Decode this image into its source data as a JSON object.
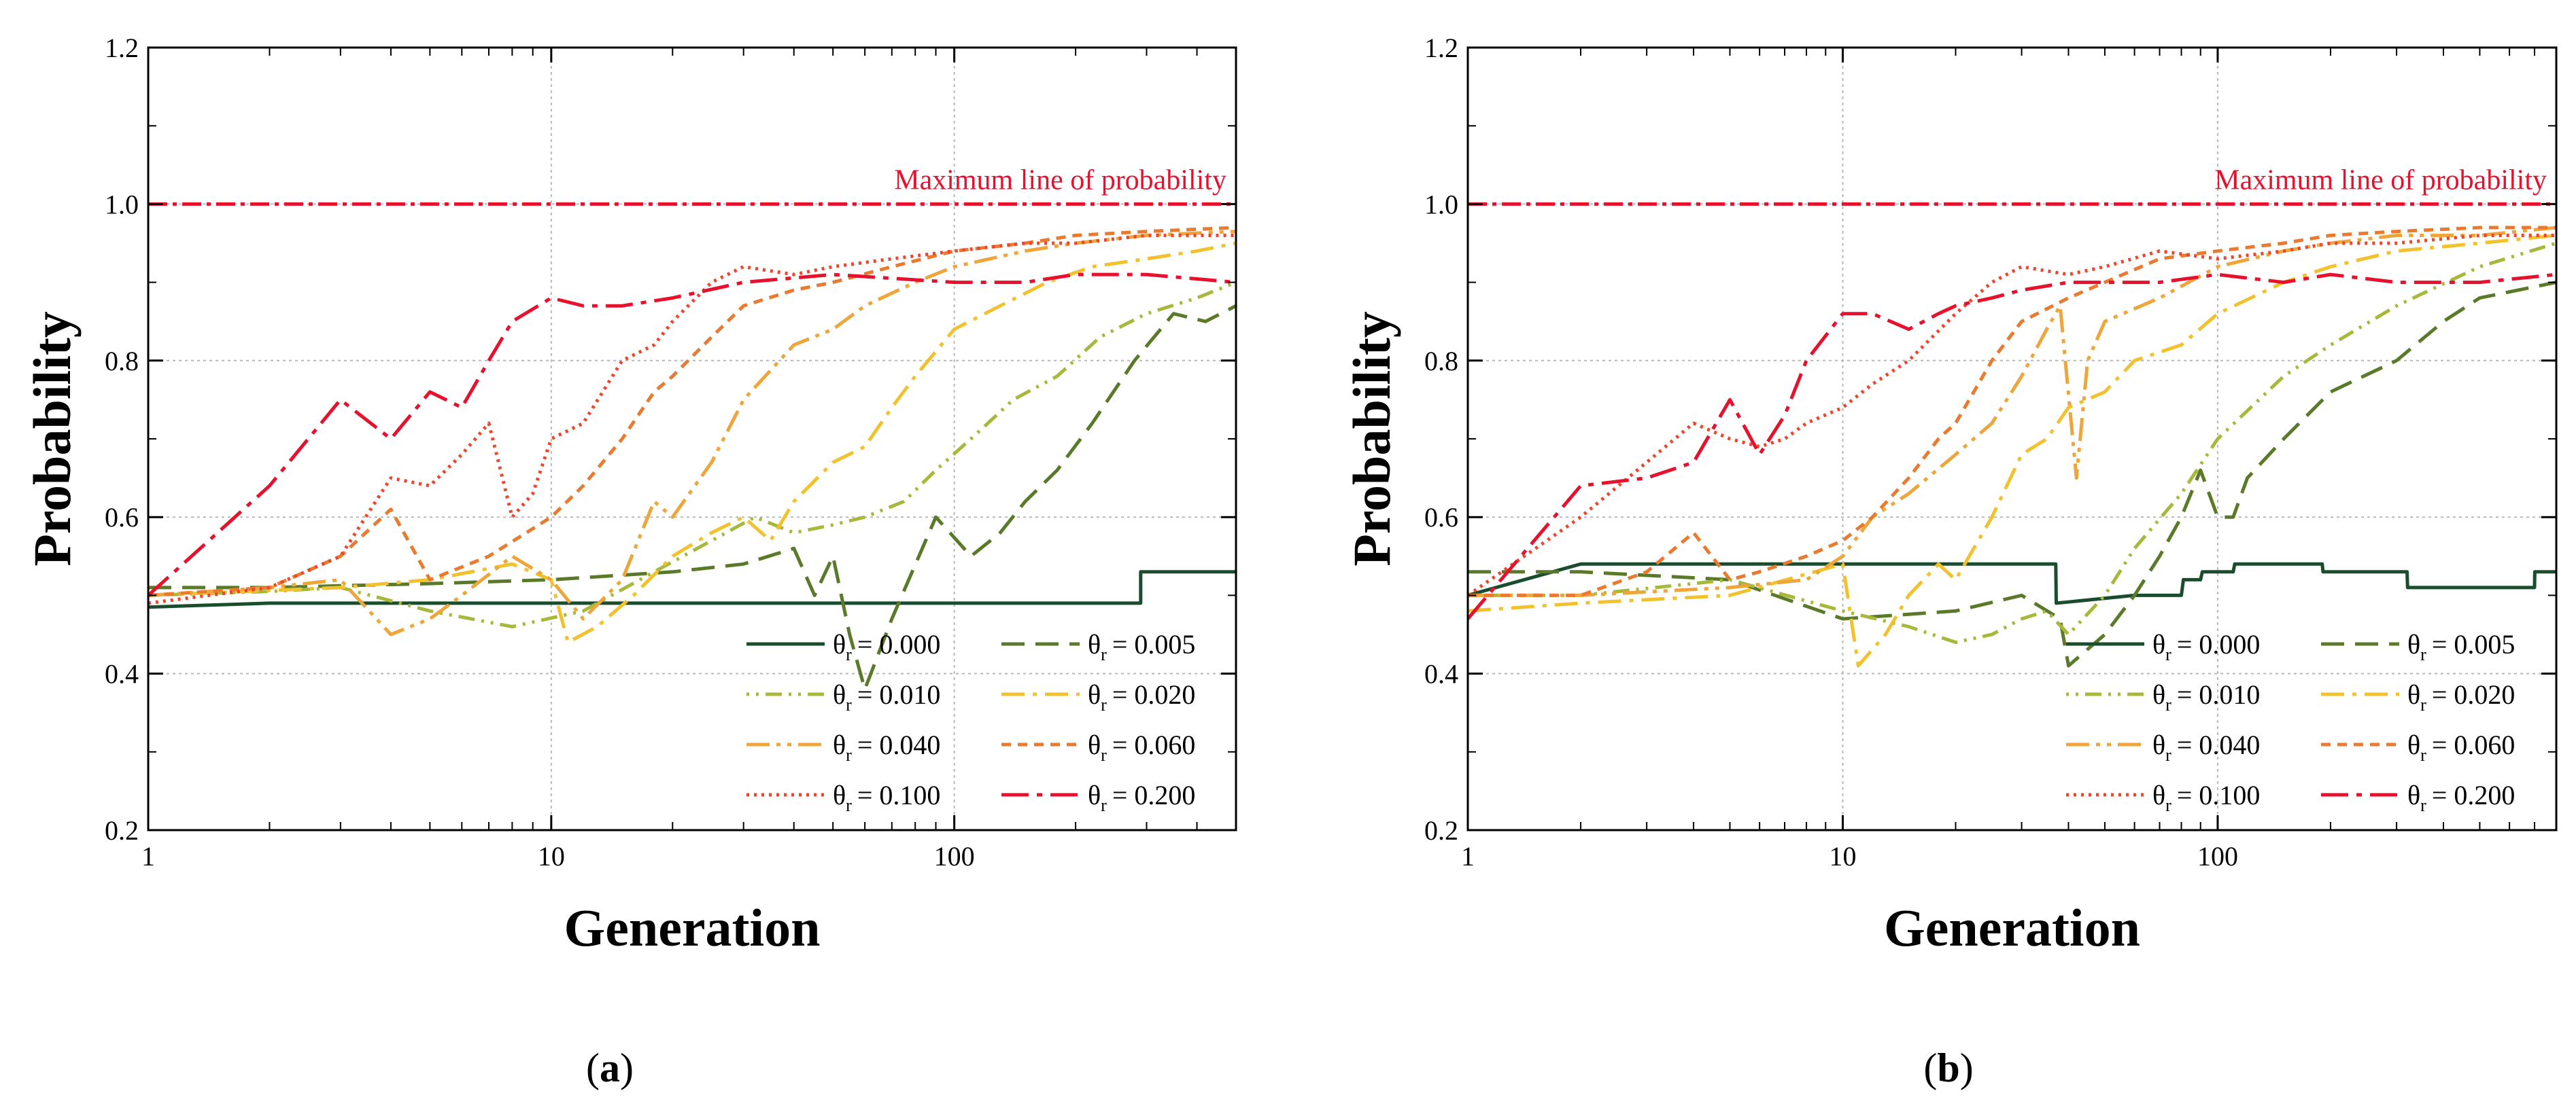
{
  "colors": {
    "theta_000": "#1a4d2e",
    "theta_005": "#5a7a2a",
    "theta_010": "#a8b83a",
    "theta_020": "#f2c12e",
    "theta_040": "#eea53a",
    "theta_060": "#ea7a30",
    "theta_100": "#f0452d",
    "theta_200": "#e8112d",
    "max_line": "#e8112d"
  },
  "chart_data": [
    {
      "panel": "a",
      "caption_letter": "a",
      "caption": "(a)",
      "type": "line",
      "xscale": "log",
      "xlim": [
        1,
        500
      ],
      "ylim": [
        0.2,
        1.2
      ],
      "xlabel": "Generation",
      "ylabel": "Probability",
      "xticks": [
        {
          "v": 1,
          "label": "1"
        },
        {
          "v": 10,
          "label": "10"
        },
        {
          "v": 100,
          "label": "100"
        }
      ],
      "yticks": [
        {
          "v": 0.2,
          "label": "0.2"
        },
        {
          "v": 0.4,
          "label": "0.4"
        },
        {
          "v": 0.6,
          "label": "0.6"
        },
        {
          "v": 0.8,
          "label": "0.8"
        },
        {
          "v": 1.0,
          "label": "1.0"
        },
        {
          "v": 1.2,
          "label": "1.2"
        }
      ],
      "grid": true,
      "max_line": {
        "y": 1.0,
        "label": "Maximum line of probability"
      },
      "legend_position": "bottom-right",
      "series": [
        {
          "key": "theta_000",
          "name_symbol": "θ",
          "name_sub": "r",
          "name_value": "= 0.000",
          "dash": "none",
          "x": [
            1,
            2,
            5,
            10,
            50,
            100,
            290,
            290.1,
            500
          ],
          "y": [
            0.485,
            0.49,
            0.49,
            0.49,
            0.49,
            0.49,
            0.49,
            0.53,
            0.53
          ]
        },
        {
          "key": "theta_005",
          "name_symbol": "θ",
          "name_sub": "r",
          "name_value": "= 0.005",
          "dash": "dashed",
          "x": [
            1,
            2,
            5,
            10,
            20,
            30,
            40,
            45,
            50,
            55,
            60,
            70,
            90,
            110,
            130,
            150,
            180,
            220,
            280,
            350,
            420,
            500
          ],
          "y": [
            0.51,
            0.51,
            0.515,
            0.52,
            0.53,
            0.54,
            0.56,
            0.5,
            0.55,
            0.45,
            0.38,
            0.47,
            0.6,
            0.55,
            0.58,
            0.62,
            0.66,
            0.72,
            0.8,
            0.86,
            0.85,
            0.87
          ]
        },
        {
          "key": "theta_010",
          "name_symbol": "θ",
          "name_sub": "r",
          "name_value": "= 0.010",
          "dash": "dotdotdash",
          "x": [
            1,
            2,
            3,
            5,
            8,
            12,
            18,
            25,
            32,
            40,
            50,
            60,
            75,
            90,
            110,
            140,
            180,
            230,
            300,
            400,
            500
          ],
          "y": [
            0.5,
            0.505,
            0.51,
            0.48,
            0.46,
            0.48,
            0.53,
            0.57,
            0.6,
            0.58,
            0.59,
            0.6,
            0.62,
            0.66,
            0.7,
            0.75,
            0.78,
            0.83,
            0.86,
            0.88,
            0.9
          ]
        },
        {
          "key": "theta_020",
          "name_symbol": "θ",
          "name_sub": "r",
          "name_value": "= 0.020",
          "dash": "dashdot",
          "x": [
            1,
            3,
            5,
            8,
            10,
            11,
            13,
            16,
            20,
            25,
            30,
            35,
            40,
            50,
            60,
            70,
            80,
            100,
            130,
            170,
            220,
            300,
            400,
            500
          ],
          "y": [
            0.5,
            0.51,
            0.52,
            0.54,
            0.52,
            0.44,
            0.46,
            0.5,
            0.55,
            0.58,
            0.6,
            0.57,
            0.62,
            0.67,
            0.69,
            0.74,
            0.78,
            0.84,
            0.87,
            0.9,
            0.92,
            0.93,
            0.94,
            0.95
          ]
        },
        {
          "key": "theta_040",
          "name_symbol": "θ",
          "name_sub": "r",
          "name_value": "= 0.040",
          "dash": "dashdotdot",
          "x": [
            1,
            2,
            3,
            4,
            5,
            6,
            8,
            10,
            12,
            15,
            18,
            20,
            25,
            30,
            40,
            50,
            60,
            80,
            100,
            150,
            200,
            300,
            500
          ],
          "y": [
            0.5,
            0.51,
            0.52,
            0.45,
            0.47,
            0.5,
            0.55,
            0.52,
            0.47,
            0.52,
            0.62,
            0.6,
            0.67,
            0.75,
            0.82,
            0.84,
            0.87,
            0.9,
            0.92,
            0.94,
            0.95,
            0.96,
            0.965
          ]
        },
        {
          "key": "theta_060",
          "name_symbol": "θ",
          "name_sub": "r",
          "name_value": "= 0.060",
          "dash": "shortdash",
          "x": [
            1,
            2,
            3,
            4,
            5,
            7,
            10,
            12,
            15,
            18,
            20,
            25,
            30,
            40,
            50,
            70,
            100,
            150,
            200,
            300,
            500
          ],
          "y": [
            0.5,
            0.51,
            0.55,
            0.61,
            0.52,
            0.55,
            0.6,
            0.64,
            0.7,
            0.76,
            0.78,
            0.83,
            0.87,
            0.89,
            0.9,
            0.92,
            0.94,
            0.95,
            0.96,
            0.965,
            0.97
          ]
        },
        {
          "key": "theta_100",
          "name_symbol": "θ",
          "name_sub": "r",
          "name_value": "= 0.100",
          "dash": "dotted",
          "x": [
            1,
            2,
            3,
            4,
            5,
            6,
            7,
            8,
            9,
            10,
            12,
            15,
            18,
            20,
            25,
            30,
            40,
            50,
            70,
            100,
            150,
            200,
            300,
            500
          ],
          "y": [
            0.49,
            0.51,
            0.55,
            0.65,
            0.64,
            0.68,
            0.72,
            0.6,
            0.63,
            0.7,
            0.72,
            0.8,
            0.82,
            0.85,
            0.9,
            0.92,
            0.91,
            0.92,
            0.93,
            0.94,
            0.95,
            0.95,
            0.96,
            0.96
          ]
        },
        {
          "key": "theta_200",
          "name_symbol": "θ",
          "name_sub": "r",
          "name_value": "= 0.200",
          "dash": "longdashdot",
          "x": [
            1,
            2,
            3,
            4,
            5,
            6,
            7,
            8,
            10,
            12,
            15,
            20,
            30,
            50,
            100,
            150,
            200,
            300,
            500
          ],
          "y": [
            0.5,
            0.64,
            0.75,
            0.7,
            0.76,
            0.74,
            0.8,
            0.85,
            0.88,
            0.87,
            0.87,
            0.88,
            0.9,
            0.91,
            0.9,
            0.9,
            0.91,
            0.91,
            0.9
          ]
        }
      ]
    },
    {
      "panel": "b",
      "caption_letter": "b",
      "caption": "(b)",
      "type": "line",
      "xscale": "log",
      "xlim": [
        1,
        800
      ],
      "ylim": [
        0.2,
        1.2
      ],
      "xlabel": "Generation",
      "ylabel": "Probability",
      "xticks": [
        {
          "v": 1,
          "label": "1"
        },
        {
          "v": 10,
          "label": "10"
        },
        {
          "v": 100,
          "label": "100"
        }
      ],
      "yticks": [
        {
          "v": 0.2,
          "label": "0.2"
        },
        {
          "v": 0.4,
          "label": "0.4"
        },
        {
          "v": 0.6,
          "label": "0.6"
        },
        {
          "v": 0.8,
          "label": "0.8"
        },
        {
          "v": 1.0,
          "label": "1.0"
        },
        {
          "v": 1.2,
          "label": "1.2"
        }
      ],
      "grid": true,
      "max_line": {
        "y": 1.0,
        "label": "Maximum line of probability"
      },
      "legend_position": "bottom-right",
      "series": [
        {
          "key": "theta_000",
          "name_symbol": "θ",
          "name_sub": "r",
          "name_value": "= 0.000",
          "dash": "none",
          "x": [
            1,
            2,
            5,
            10,
            20,
            37,
            37.1,
            60,
            80,
            81,
            90,
            91,
            110,
            111,
            190,
            191,
            320,
            321,
            700,
            701,
            800
          ],
          "y": [
            0.5,
            0.54,
            0.54,
            0.54,
            0.54,
            0.54,
            0.49,
            0.5,
            0.5,
            0.52,
            0.52,
            0.53,
            0.53,
            0.54,
            0.54,
            0.53,
            0.53,
            0.51,
            0.51,
            0.53,
            0.53
          ]
        },
        {
          "key": "theta_005",
          "name_symbol": "θ",
          "name_sub": "r",
          "name_value": "= 0.005",
          "dash": "dashed",
          "x": [
            1,
            2,
            5,
            10,
            20,
            30,
            38,
            40,
            50,
            60,
            70,
            80,
            90,
            100,
            110,
            120,
            150,
            200,
            300,
            400,
            500,
            800
          ],
          "y": [
            0.53,
            0.53,
            0.52,
            0.47,
            0.48,
            0.5,
            0.47,
            0.41,
            0.45,
            0.5,
            0.55,
            0.6,
            0.66,
            0.6,
            0.6,
            0.65,
            0.7,
            0.76,
            0.8,
            0.85,
            0.88,
            0.9
          ]
        },
        {
          "key": "theta_010",
          "name_symbol": "θ",
          "name_sub": "r",
          "name_value": "= 0.010",
          "dash": "dotdotdash",
          "x": [
            1,
            2,
            5,
            10,
            15,
            20,
            25,
            30,
            35,
            40,
            50,
            60,
            80,
            100,
            150,
            200,
            300,
            500,
            800
          ],
          "y": [
            0.5,
            0.5,
            0.52,
            0.48,
            0.46,
            0.44,
            0.45,
            0.47,
            0.48,
            0.45,
            0.5,
            0.56,
            0.63,
            0.7,
            0.78,
            0.82,
            0.87,
            0.92,
            0.95
          ]
        },
        {
          "key": "theta_020",
          "name_symbol": "θ",
          "name_sub": "r",
          "name_value": "= 0.020",
          "dash": "dashdot",
          "x": [
            1,
            2,
            5,
            10,
            11,
            13,
            15,
            18,
            20,
            25,
            30,
            35,
            40,
            50,
            60,
            80,
            100,
            150,
            200,
            300,
            500,
            800
          ],
          "y": [
            0.48,
            0.49,
            0.5,
            0.54,
            0.41,
            0.45,
            0.5,
            0.54,
            0.52,
            0.6,
            0.68,
            0.7,
            0.74,
            0.76,
            0.8,
            0.82,
            0.86,
            0.9,
            0.92,
            0.94,
            0.95,
            0.96
          ]
        },
        {
          "key": "theta_040",
          "name_symbol": "θ",
          "name_sub": "r",
          "name_value": "= 0.040",
          "dash": "dashdotdot",
          "x": [
            1,
            2,
            5,
            8,
            10,
            12,
            15,
            20,
            25,
            30,
            35,
            38,
            42,
            45,
            50,
            70,
            100,
            150,
            200,
            300,
            500,
            800
          ],
          "y": [
            0.5,
            0.5,
            0.51,
            0.52,
            0.55,
            0.6,
            0.63,
            0.68,
            0.72,
            0.78,
            0.84,
            0.87,
            0.65,
            0.8,
            0.85,
            0.88,
            0.92,
            0.94,
            0.95,
            0.96,
            0.96,
            0.97
          ]
        },
        {
          "key": "theta_060",
          "name_symbol": "θ",
          "name_sub": "r",
          "name_value": "= 0.060",
          "dash": "shortdash",
          "x": [
            1,
            2,
            3,
            4,
            5,
            6,
            8,
            10,
            12,
            15,
            18,
            20,
            25,
            30,
            40,
            50,
            70,
            100,
            150,
            200,
            300,
            500,
            800
          ],
          "y": [
            0.5,
            0.5,
            0.53,
            0.58,
            0.52,
            0.53,
            0.55,
            0.57,
            0.6,
            0.65,
            0.7,
            0.72,
            0.8,
            0.85,
            0.88,
            0.9,
            0.93,
            0.94,
            0.95,
            0.96,
            0.965,
            0.97,
            0.97
          ]
        },
        {
          "key": "theta_100",
          "name_symbol": "θ",
          "name_sub": "r",
          "name_value": "= 0.100",
          "dash": "dotted",
          "x": [
            1,
            2,
            3,
            4,
            5,
            6,
            7,
            8,
            10,
            12,
            15,
            20,
            25,
            30,
            40,
            50,
            70,
            100,
            150,
            200,
            300,
            500,
            800
          ],
          "y": [
            0.5,
            0.6,
            0.67,
            0.72,
            0.7,
            0.69,
            0.7,
            0.72,
            0.74,
            0.77,
            0.8,
            0.86,
            0.9,
            0.92,
            0.91,
            0.92,
            0.94,
            0.93,
            0.94,
            0.95,
            0.95,
            0.96,
            0.96
          ]
        },
        {
          "key": "theta_200",
          "name_symbol": "θ",
          "name_sub": "r",
          "name_value": "= 0.200",
          "dash": "longdashdot",
          "x": [
            1,
            2,
            3,
            4,
            5,
            6,
            7,
            8,
            10,
            12,
            15,
            18,
            20,
            25,
            30,
            40,
            50,
            70,
            100,
            150,
            200,
            300,
            500,
            800
          ],
          "y": [
            0.47,
            0.64,
            0.65,
            0.67,
            0.75,
            0.68,
            0.73,
            0.8,
            0.86,
            0.86,
            0.84,
            0.86,
            0.87,
            0.88,
            0.89,
            0.9,
            0.9,
            0.9,
            0.91,
            0.9,
            0.91,
            0.9,
            0.9,
            0.91
          ]
        }
      ]
    }
  ]
}
